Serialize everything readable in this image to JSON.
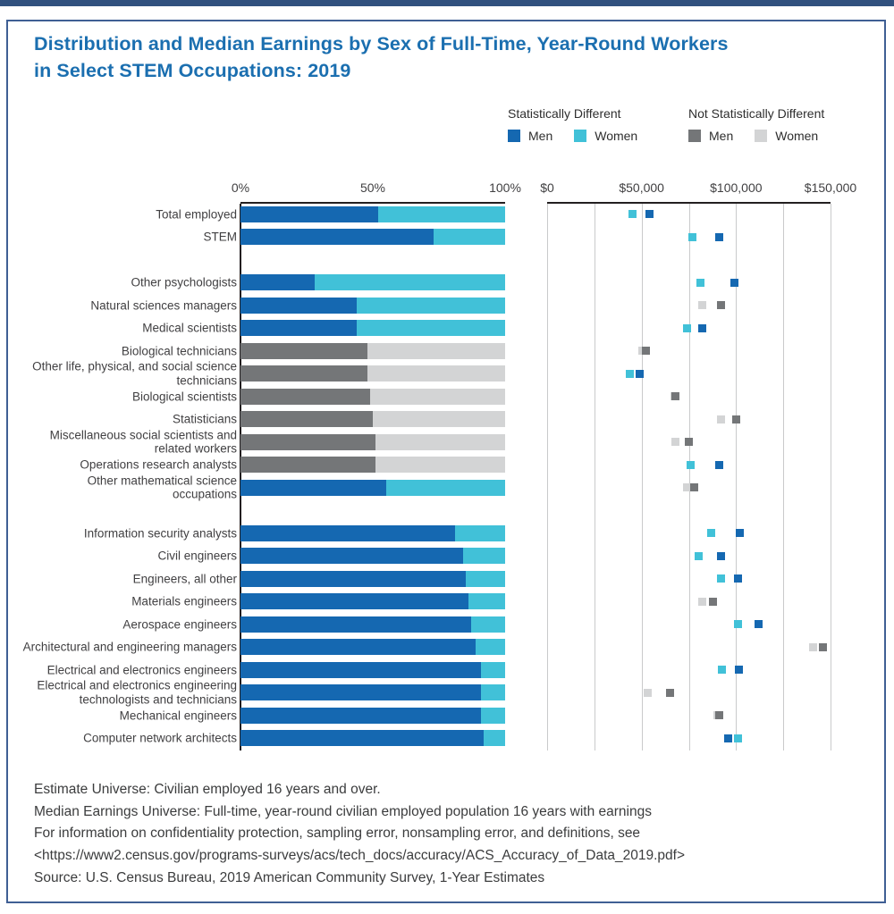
{
  "page": {
    "title_line1": "Distribution and Median Earnings by Sex of Full-Time, Year-Round Workers",
    "title_line2": "in Select STEM Occupations: 2019"
  },
  "legend": {
    "statistically_different": {
      "title": "Statistically Different",
      "men_label": "Men",
      "women_label": "Women"
    },
    "not_statistically_different": {
      "title": "Not Statistically Different",
      "men_label": "Men",
      "women_label": "Women"
    }
  },
  "colors": {
    "men_statistically_different": "#1568b1",
    "women_statistically_different": "#41c1d8",
    "men_not_statistically_different": "#747678",
    "women_not_statistically_different": "#d3d4d5",
    "title_blue": "#1b6fb0",
    "axis_line": "#231f20",
    "gridline": "#c9cacb",
    "text": "#414042",
    "top_bar_navy": "#31517e",
    "frame_border": "#3f5f94"
  },
  "chart_data": {
    "categories": [
      "Total employed",
      "STEM",
      "Other psychologists",
      "Natural sciences managers",
      "Medical scientists",
      "Biological technicians",
      "Other life, physical, and social science technicians",
      "Biological scientists",
      "Statisticians",
      "Miscellaneous social scientists and related workers",
      "Operations research analysts",
      "Other mathematical science occupations",
      "Information security analysts",
      "Civil engineers",
      "Engineers, all other",
      "Materials engineers",
      "Aerospace engineers",
      "Architectural and engineering managers",
      "Electrical and electronics engineers",
      "Electrical and electronics engineering technologists and technicians",
      "Mechanical engineers",
      "Computer network architects"
    ],
    "gap_after_indices": [
      1,
      11
    ],
    "distribution": {
      "type": "bar",
      "subtype": "horizontal-100pct-stacked",
      "ticks": [
        "0%",
        "50%",
        "100%"
      ],
      "xlim": [
        0,
        100
      ],
      "series": [
        {
          "name": "Men",
          "values": [
            52,
            73,
            28,
            44,
            44,
            48,
            48,
            49,
            50,
            51,
            51,
            55,
            81,
            84,
            85,
            86,
            87,
            89,
            91,
            91,
            91,
            92
          ]
        },
        {
          "name": "Women",
          "values": [
            48,
            27,
            72,
            56,
            56,
            52,
            52,
            51,
            50,
            49,
            49,
            45,
            19,
            16,
            15,
            14,
            13,
            11,
            9,
            9,
            9,
            8
          ]
        }
      ],
      "statistically_different": [
        true,
        true,
        true,
        true,
        true,
        false,
        false,
        false,
        false,
        false,
        false,
        true,
        true,
        true,
        true,
        true,
        true,
        true,
        true,
        true,
        true,
        true
      ]
    },
    "earnings": {
      "type": "scatter",
      "subtype": "median-earnings-dollars",
      "ticks": [
        "$0",
        "$50,000",
        "$100,000",
        "$150,000"
      ],
      "xlim": [
        0,
        150000
      ],
      "grid_interval": 25000,
      "series": [
        {
          "name": "Men",
          "values": [
            54000,
            91000,
            99000,
            92000,
            82000,
            52500,
            49000,
            68000,
            100000,
            75000,
            91000,
            78000,
            102000,
            92000,
            101000,
            88000,
            112000,
            146000,
            101500,
            65000,
            91000,
            96000
          ]
        },
        {
          "name": "Women",
          "values": [
            45000,
            77000,
            81000,
            82000,
            74000,
            50500,
            44000,
            67500,
            92000,
            68000,
            76000,
            74000,
            87000,
            80000,
            92000,
            82000,
            101000,
            141000,
            92500,
            53000,
            90000,
            101000
          ]
        }
      ],
      "statistically_different": [
        true,
        true,
        true,
        false,
        true,
        false,
        true,
        false,
        false,
        false,
        true,
        false,
        true,
        true,
        true,
        false,
        true,
        false,
        true,
        false,
        false,
        true
      ]
    }
  },
  "footer": {
    "lines": [
      "Estimate Universe: Civilian employed 16 years and over.",
      "Median Earnings Universe: Full-time, year-round civilian employed population 16 years with earnings",
      "For information on confidentiality protection, sampling error, nonsampling error, and definitions, see",
      "<https://www2.census.gov/programs-surveys/acs/tech_docs/accuracy/ACS_Accuracy_of_Data_2019.pdf>",
      "Source: U.S. Census Bureau, 2019 American Community Survey, 1-Year Estimates"
    ]
  }
}
